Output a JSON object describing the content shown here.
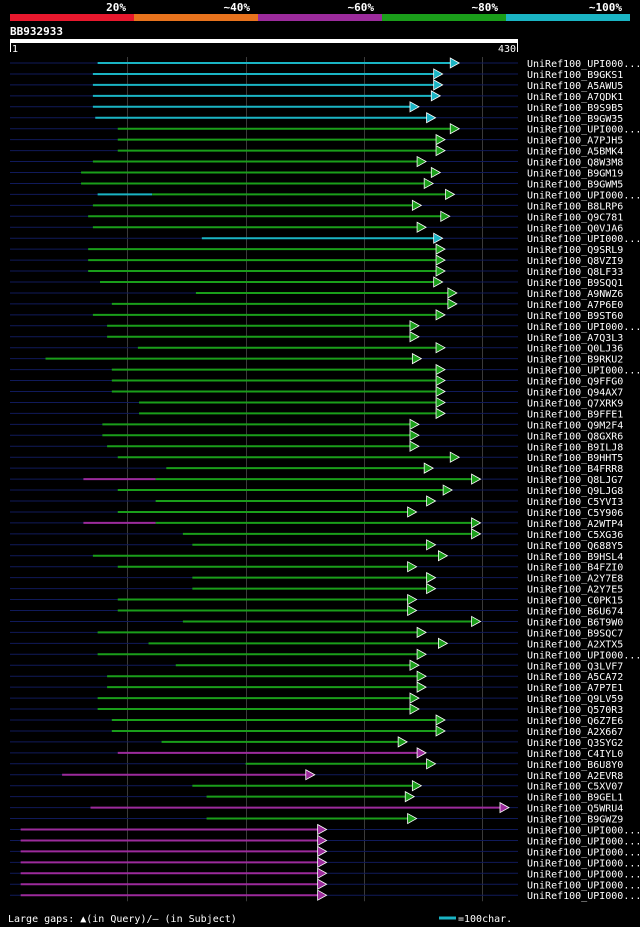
{
  "chart_data": {
    "type": "alignment-overview",
    "title": "BB932933",
    "query_length": 430,
    "axis_start_label": "1",
    "axis_end_label": "430",
    "identity_legend": [
      {
        "label": "20%",
        "color": "#e8182d"
      },
      {
        "label": "~40%",
        "color": "#e8731d"
      },
      {
        "label": "~60%",
        "color": "#9c2b9c"
      },
      {
        "label": "~80%",
        "color": "#1a9e1a"
      },
      {
        "label": "~100%",
        "color": "#1ab4c4"
      }
    ],
    "footer": {
      "gaps_text": "Large gaps: ▲(in Query)/– (in Subject)",
      "scale_text": "=100char."
    },
    "hits": [
      {
        "name": "UniRef100_UPI000...",
        "start": 75,
        "end": 377,
        "color": "cyan"
      },
      {
        "name": "UniRef100_B9GKS1",
        "start": 71,
        "end": 363,
        "color": "cyan"
      },
      {
        "name": "UniRef100_A5AWU5",
        "start": 71,
        "end": 363,
        "color": "cyan"
      },
      {
        "name": "UniRef100_A7QDK1",
        "start": 71,
        "end": 361,
        "color": "cyan"
      },
      {
        "name": "UniRef100_B9S9B5",
        "start": 71,
        "end": 343,
        "color": "cyan"
      },
      {
        "name": "UniRef100_B9GW35",
        "start": 73,
        "end": 357,
        "color": "cyan"
      },
      {
        "name": "UniRef100_UPI000...",
        "start": 92,
        "end": 377,
        "color": "green"
      },
      {
        "name": "UniRef100_A7PJH5",
        "start": 92,
        "end": 365,
        "color": "green"
      },
      {
        "name": "UniRef100_A5BMK4",
        "start": 92,
        "end": 365,
        "color": "green"
      },
      {
        "name": "UniRef100_Q8W3M8",
        "start": 71,
        "end": 349,
        "color": "green"
      },
      {
        "name": "UniRef100_B9GM19",
        "start": 61,
        "end": 361,
        "color": "green"
      },
      {
        "name": "UniRef100_B9GWM5",
        "start": 61,
        "end": 355,
        "color": "green"
      },
      {
        "name": "UniRef100_UPI000...",
        "start": 75,
        "end": 121,
        "color": "cyan",
        "extra": [
          {
            "start": 121,
            "end": 373,
            "color": "green"
          }
        ]
      },
      {
        "name": "UniRef100_B8LRP6",
        "start": 71,
        "end": 345,
        "color": "green"
      },
      {
        "name": "UniRef100_Q9C781",
        "start": 67,
        "end": 369,
        "color": "green"
      },
      {
        "name": "UniRef100_Q0VJA6",
        "start": 71,
        "end": 349,
        "color": "green"
      },
      {
        "name": "UniRef100_UPI000...",
        "start": 163,
        "end": 363,
        "color": "cyan"
      },
      {
        "name": "UniRef100_Q9SRL9",
        "start": 67,
        "end": 365,
        "color": "green"
      },
      {
        "name": "UniRef100_Q8VZI9",
        "start": 67,
        "end": 365,
        "color": "green"
      },
      {
        "name": "UniRef100_Q8LF33",
        "start": 67,
        "end": 365,
        "color": "green"
      },
      {
        "name": "UniRef100_B9SQQ1",
        "start": 77,
        "end": 363,
        "color": "green"
      },
      {
        "name": "UniRef100_A9NWZ6",
        "start": 158,
        "end": 375,
        "color": "green"
      },
      {
        "name": "UniRef100_A7P6E0",
        "start": 87,
        "end": 375,
        "color": "green"
      },
      {
        "name": "UniRef100_B9ST60",
        "start": 71,
        "end": 365,
        "color": "green"
      },
      {
        "name": "UniRef100_UPI000...",
        "start": 83,
        "end": 343,
        "color": "green"
      },
      {
        "name": "UniRef100_A7Q3L3",
        "start": 83,
        "end": 343,
        "color": "green"
      },
      {
        "name": "UniRef100_Q0LJ36",
        "start": 109,
        "end": 365,
        "color": "green"
      },
      {
        "name": "UniRef100_B9RKU2",
        "start": 31,
        "end": 345,
        "color": "green"
      },
      {
        "name": "UniRef100_UPI000...",
        "start": 87,
        "end": 365,
        "color": "green"
      },
      {
        "name": "UniRef100_Q9FFG0",
        "start": 87,
        "end": 365,
        "color": "green"
      },
      {
        "name": "UniRef100_Q94AX7",
        "start": 87,
        "end": 365,
        "color": "green"
      },
      {
        "name": "UniRef100_Q7XRK9",
        "start": 110,
        "end": 365,
        "color": "green"
      },
      {
        "name": "UniRef100_B9FFE1",
        "start": 110,
        "end": 365,
        "color": "green"
      },
      {
        "name": "UniRef100_Q9M2F4",
        "start": 79,
        "end": 343,
        "color": "green"
      },
      {
        "name": "UniRef100_Q8GXR6",
        "start": 79,
        "end": 343,
        "color": "green"
      },
      {
        "name": "UniRef100_B9ILJ8",
        "start": 83,
        "end": 343,
        "color": "green"
      },
      {
        "name": "UniRef100_B9HHT5",
        "start": 92,
        "end": 377,
        "color": "green"
      },
      {
        "name": "UniRef100_B4FRR8",
        "start": 133,
        "end": 355,
        "color": "green"
      },
      {
        "name": "UniRef100_Q8LJG7",
        "start": 63,
        "end": 124,
        "color": "magenta",
        "extra": [
          {
            "start": 124,
            "end": 395,
            "color": "green"
          }
        ]
      },
      {
        "name": "UniRef100_Q9LJG8",
        "start": 92,
        "end": 371,
        "color": "green"
      },
      {
        "name": "UniRef100_C5YVI3",
        "start": 124,
        "end": 357,
        "color": "green"
      },
      {
        "name": "UniRef100_C5Y906",
        "start": 92,
        "end": 341,
        "color": "green"
      },
      {
        "name": "UniRef100_A2WTP4",
        "start": 63,
        "end": 124,
        "color": "magenta",
        "extra": [
          {
            "start": 124,
            "end": 395,
            "color": "green"
          }
        ]
      },
      {
        "name": "UniRef100_C5XG36",
        "start": 147,
        "end": 395,
        "color": "green"
      },
      {
        "name": "UniRef100_Q688Y5",
        "start": 155,
        "end": 357,
        "color": "green"
      },
      {
        "name": "UniRef100_B9HSL4",
        "start": 71,
        "end": 367,
        "color": "green"
      },
      {
        "name": "UniRef100_B4FZI0",
        "start": 92,
        "end": 341,
        "color": "green"
      },
      {
        "name": "UniRef100_A2Y7E8",
        "start": 155,
        "end": 357,
        "color": "green"
      },
      {
        "name": "UniRef100_A2Y7E5",
        "start": 155,
        "end": 357,
        "color": "green"
      },
      {
        "name": "UniRef100_C0PK15",
        "start": 92,
        "end": 341,
        "color": "green"
      },
      {
        "name": "UniRef100_B6U674",
        "start": 92,
        "end": 341,
        "color": "green"
      },
      {
        "name": "UniRef100_B6T9W0",
        "start": 147,
        "end": 395,
        "color": "green"
      },
      {
        "name": "UniRef100_B9SQC7",
        "start": 75,
        "end": 349,
        "color": "green"
      },
      {
        "name": "UniRef100_A2XTX5",
        "start": 118,
        "end": 367,
        "color": "green"
      },
      {
        "name": "UniRef100_UPI000...",
        "start": 75,
        "end": 349,
        "color": "green"
      },
      {
        "name": "UniRef100_Q3LVF7",
        "start": 141,
        "end": 343,
        "color": "green"
      },
      {
        "name": "UniRef100_A5CA72",
        "start": 83,
        "end": 349,
        "color": "green"
      },
      {
        "name": "UniRef100_A7P7E1",
        "start": 83,
        "end": 349,
        "color": "green"
      },
      {
        "name": "UniRef100_Q9LV59",
        "start": 75,
        "end": 343,
        "color": "green"
      },
      {
        "name": "UniRef100_Q570R3",
        "start": 75,
        "end": 343,
        "color": "green"
      },
      {
        "name": "UniRef100_Q6Z7E6",
        "start": 87,
        "end": 365,
        "color": "green"
      },
      {
        "name": "UniRef100_A2X667",
        "start": 87,
        "end": 365,
        "color": "green"
      },
      {
        "name": "UniRef100_Q3SYG2",
        "start": 129,
        "end": 333,
        "color": "green"
      },
      {
        "name": "UniRef100_C4IYL0",
        "start": 92,
        "end": 349,
        "color": "magenta"
      },
      {
        "name": "UniRef100_B6U8Y0",
        "start": 200,
        "end": 357,
        "color": "green"
      },
      {
        "name": "UniRef100_A2EVR8",
        "start": 45,
        "end": 255,
        "color": "magenta"
      },
      {
        "name": "UniRef100_C5XV07",
        "start": 155,
        "end": 345,
        "color": "green"
      },
      {
        "name": "UniRef100_B9GEL1",
        "start": 167,
        "end": 339,
        "color": "green"
      },
      {
        "name": "UniRef100_Q5WRU4",
        "start": 69,
        "end": 419,
        "color": "magenta"
      },
      {
        "name": "UniRef100_B9GWZ9",
        "start": 167,
        "end": 341,
        "color": "green"
      },
      {
        "name": "UniRef100_UPI000...",
        "start": 10,
        "end": 265,
        "color": "magenta"
      },
      {
        "name": "UniRef100_UPI000...",
        "start": 10,
        "end": 265,
        "color": "magenta"
      },
      {
        "name": "UniRef100_UPI000...",
        "start": 10,
        "end": 265,
        "color": "magenta"
      },
      {
        "name": "UniRef100_UPI000...",
        "start": 10,
        "end": 265,
        "color": "magenta"
      },
      {
        "name": "UniRef100_UPI000...",
        "start": 10,
        "end": 265,
        "color": "magenta"
      },
      {
        "name": "UniRef100_UPI000...",
        "start": 10,
        "end": 265,
        "color": "magenta"
      },
      {
        "name": "UniRef100_UPI000...",
        "start": 10,
        "end": 265,
        "color": "magenta"
      }
    ]
  }
}
